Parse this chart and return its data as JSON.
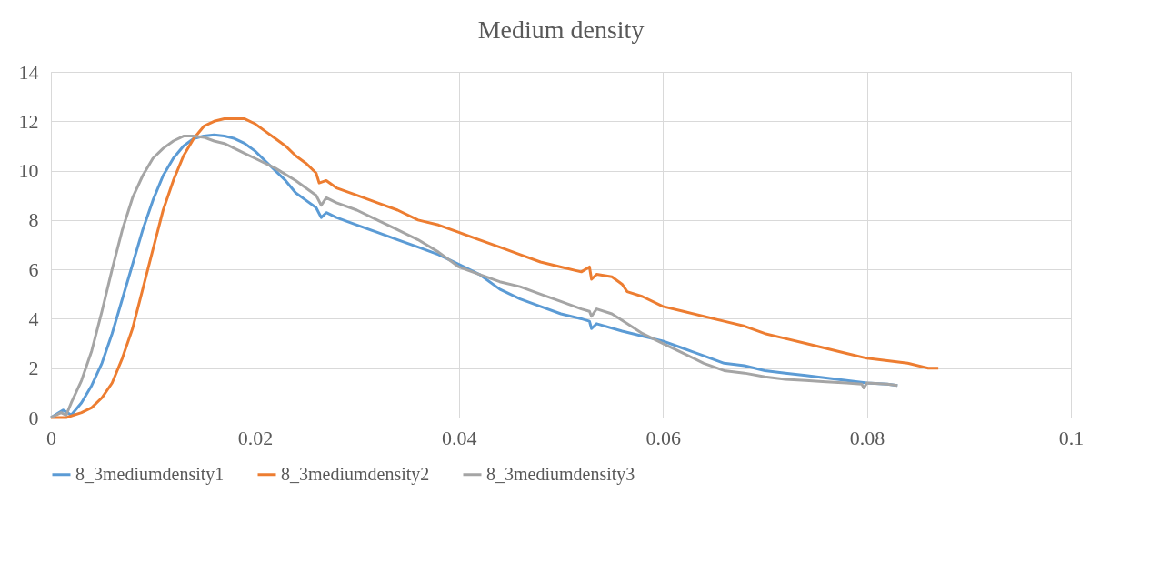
{
  "chart_data": {
    "type": "line",
    "title": "Medium density",
    "xlim": [
      0,
      0.1
    ],
    "xticks": [
      0,
      0.02,
      0.04,
      0.06,
      0.08,
      0.1
    ],
    "ylim": [
      0,
      14
    ],
    "yticks": [
      0,
      2,
      4,
      6,
      8,
      10,
      12,
      14
    ],
    "grid": true,
    "legend": "bottom",
    "marker": "none",
    "line_style": "solid",
    "series": [
      {
        "name": "8_3mediumdensity1",
        "color": "#5b9bd5",
        "x": [
          0,
          0.0012,
          0.002,
          0.003,
          0.004,
          0.005,
          0.006,
          0.007,
          0.008,
          0.009,
          0.01,
          0.011,
          0.012,
          0.013,
          0.014,
          0.015,
          0.016,
          0.017,
          0.018,
          0.019,
          0.02,
          0.021,
          0.022,
          0.023,
          0.024,
          0.025,
          0.026,
          0.0265,
          0.027,
          0.028,
          0.03,
          0.032,
          0.034,
          0.036,
          0.038,
          0.04,
          0.042,
          0.044,
          0.046,
          0.048,
          0.05,
          0.052,
          0.0528,
          0.053,
          0.0535,
          0.056,
          0.058,
          0.06,
          0.062,
          0.064,
          0.066,
          0.068,
          0.07,
          0.072,
          0.074,
          0.076,
          0.078,
          0.08,
          0.082,
          0.083
        ],
        "values": [
          0,
          0.3,
          0.1,
          0.6,
          1.3,
          2.2,
          3.4,
          4.8,
          6.2,
          7.6,
          8.8,
          9.8,
          10.5,
          11.0,
          11.3,
          11.4,
          11.45,
          11.4,
          11.3,
          11.1,
          10.8,
          10.4,
          10.0,
          9.6,
          9.1,
          8.8,
          8.5,
          8.1,
          8.3,
          8.1,
          7.8,
          7.5,
          7.2,
          6.9,
          6.6,
          6.2,
          5.8,
          5.2,
          4.8,
          4.5,
          4.2,
          4.0,
          3.9,
          3.6,
          3.8,
          3.5,
          3.3,
          3.1,
          2.8,
          2.5,
          2.2,
          2.1,
          1.9,
          1.8,
          1.7,
          1.6,
          1.5,
          1.4,
          1.35,
          1.3
        ]
      },
      {
        "name": "8_3mediumdensity2",
        "color": "#ed7d31",
        "x": [
          0,
          0.0015,
          0.003,
          0.004,
          0.005,
          0.006,
          0.007,
          0.008,
          0.009,
          0.01,
          0.011,
          0.012,
          0.013,
          0.014,
          0.015,
          0.016,
          0.017,
          0.018,
          0.019,
          0.02,
          0.021,
          0.022,
          0.023,
          0.024,
          0.025,
          0.026,
          0.0263,
          0.027,
          0.028,
          0.03,
          0.032,
          0.034,
          0.036,
          0.038,
          0.04,
          0.042,
          0.044,
          0.046,
          0.048,
          0.05,
          0.052,
          0.0528,
          0.053,
          0.0535,
          0.055,
          0.056,
          0.0565,
          0.058,
          0.06,
          0.062,
          0.064,
          0.066,
          0.068,
          0.07,
          0.072,
          0.074,
          0.076,
          0.078,
          0.08,
          0.082,
          0.084,
          0.086,
          0.087
        ],
        "values": [
          0,
          0,
          0.2,
          0.4,
          0.8,
          1.4,
          2.4,
          3.6,
          5.2,
          6.8,
          8.4,
          9.6,
          10.6,
          11.3,
          11.8,
          12.0,
          12.1,
          12.1,
          12.1,
          11.9,
          11.6,
          11.3,
          11.0,
          10.6,
          10.3,
          9.9,
          9.5,
          9.6,
          9.3,
          9.0,
          8.7,
          8.4,
          8.0,
          7.8,
          7.5,
          7.2,
          6.9,
          6.6,
          6.3,
          6.1,
          5.9,
          6.1,
          5.6,
          5.8,
          5.7,
          5.4,
          5.1,
          4.9,
          4.5,
          4.3,
          4.1,
          3.9,
          3.7,
          3.4,
          3.2,
          3.0,
          2.8,
          2.6,
          2.4,
          2.3,
          2.2,
          2.0,
          2.0
        ]
      },
      {
        "name": "8_3mediumdensity3",
        "color": "#a5a5a5",
        "x": [
          0,
          0.001,
          0.0015,
          0.002,
          0.003,
          0.004,
          0.005,
          0.006,
          0.007,
          0.008,
          0.009,
          0.01,
          0.011,
          0.012,
          0.013,
          0.014,
          0.015,
          0.016,
          0.017,
          0.018,
          0.019,
          0.02,
          0.022,
          0.024,
          0.026,
          0.0265,
          0.027,
          0.028,
          0.03,
          0.032,
          0.034,
          0.036,
          0.038,
          0.04,
          0.042,
          0.044,
          0.046,
          0.048,
          0.05,
          0.052,
          0.0528,
          0.053,
          0.0535,
          0.055,
          0.0565,
          0.058,
          0.06,
          0.062,
          0.064,
          0.066,
          0.068,
          0.07,
          0.072,
          0.074,
          0.076,
          0.078,
          0.0795,
          0.0797,
          0.08,
          0.082,
          0.083
        ],
        "values": [
          0,
          0.2,
          0.1,
          0.6,
          1.5,
          2.7,
          4.3,
          6.0,
          7.6,
          8.9,
          9.8,
          10.5,
          10.9,
          11.2,
          11.4,
          11.4,
          11.35,
          11.2,
          11.1,
          10.9,
          10.7,
          10.5,
          10.1,
          9.6,
          9.0,
          8.6,
          8.9,
          8.7,
          8.4,
          8.0,
          7.6,
          7.2,
          6.7,
          6.1,
          5.8,
          5.5,
          5.3,
          5.0,
          4.7,
          4.4,
          4.3,
          4.1,
          4.4,
          4.2,
          3.8,
          3.4,
          3.0,
          2.6,
          2.2,
          1.9,
          1.8,
          1.65,
          1.55,
          1.5,
          1.45,
          1.4,
          1.35,
          1.2,
          1.4,
          1.35,
          1.3
        ]
      }
    ]
  }
}
